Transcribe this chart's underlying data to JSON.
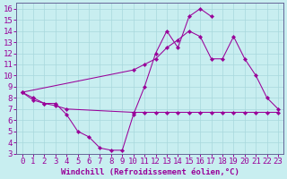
{
  "xlabel": "Windchill (Refroidissement éolien,°C)",
  "bg_color": "#c8eef0",
  "line_color": "#990099",
  "grid_color": "#a8d8dc",
  "xlim": [
    -0.5,
    23.5
  ],
  "ylim": [
    3,
    16.5
  ],
  "xticks": [
    0,
    1,
    2,
    3,
    4,
    5,
    6,
    7,
    8,
    9,
    10,
    11,
    12,
    13,
    14,
    15,
    16,
    17,
    18,
    19,
    20,
    21,
    22,
    23
  ],
  "yticks": [
    3,
    4,
    5,
    6,
    7,
    8,
    9,
    10,
    11,
    12,
    13,
    14,
    15,
    16
  ],
  "line1_x": [
    0,
    1,
    2,
    3,
    4,
    5,
    6,
    7,
    8,
    9,
    10,
    11,
    12,
    13,
    14,
    15,
    16,
    17
  ],
  "line1_y": [
    8.5,
    8.0,
    7.5,
    7.5,
    6.5,
    5.0,
    4.5,
    3.5,
    3.3,
    3.3,
    6.5,
    9.0,
    12.0,
    14.0,
    12.5,
    15.3,
    16.0,
    15.3
  ],
  "line2_x": [
    0,
    1,
    2,
    3,
    4,
    10,
    11,
    12,
    13,
    14,
    15,
    16,
    17,
    18,
    19,
    20,
    21,
    22,
    23
  ],
  "line2_y": [
    8.5,
    7.8,
    7.5,
    7.3,
    7.0,
    6.7,
    6.7,
    6.7,
    6.7,
    6.7,
    6.7,
    6.7,
    6.7,
    6.7,
    6.7,
    6.7,
    6.7,
    6.7,
    6.7
  ],
  "line3_x": [
    0,
    10,
    11,
    12,
    13,
    14,
    15,
    16,
    17,
    18,
    19,
    20,
    21,
    22,
    23
  ],
  "line3_y": [
    8.5,
    10.5,
    11.0,
    11.5,
    12.5,
    13.2,
    14.0,
    13.5,
    11.5,
    11.5,
    13.5,
    11.5,
    10.0,
    8.0,
    7.0
  ],
  "font_size": 6.5
}
